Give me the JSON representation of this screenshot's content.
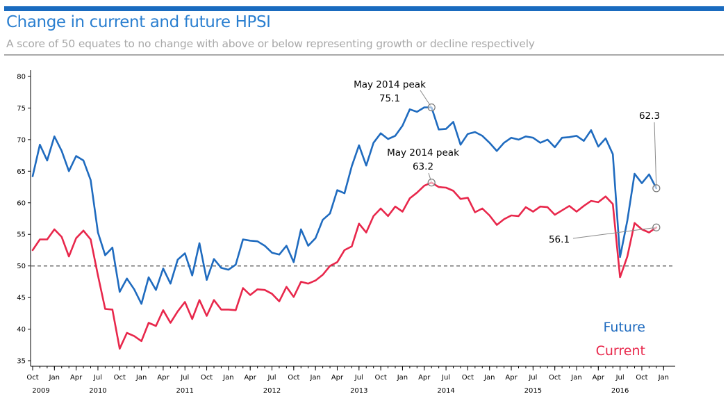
{
  "header": {
    "title": "Change in current and future HPSI",
    "subtitle": "A score of 50 equates to no change with above or below representing growth or decline respectively"
  },
  "colors": {
    "future": "#1f6bbf",
    "current": "#e8274b",
    "accent": "#1a6bbf"
  },
  "chart_data": {
    "type": "line",
    "title": "Change in current and future HPSI",
    "subtitle": "A score of 50 equates to no change with above or below representing growth or decline respectively",
    "ylim": [
      35,
      80
    ],
    "yticks": [
      35,
      40,
      45,
      50,
      55,
      60,
      65,
      70,
      75,
      80
    ],
    "x_start": "2009-10",
    "x_end": "2016-12",
    "month_labels": [
      "Oct",
      "Jan",
      "Apr",
      "Jul",
      "Oct",
      "Jan",
      "Apr",
      "Jul",
      "Oct",
      "Jan",
      "Apr",
      "Jul",
      "Oct",
      "Jan",
      "Apr",
      "Jul",
      "Oct",
      "Jan",
      "Apr",
      "Jul",
      "Oct",
      "Jan",
      "Apr",
      "Jul",
      "Oct",
      "Jan",
      "Apr",
      "Jul",
      "Oct",
      "Jan"
    ],
    "year_labels": [
      "2009",
      "2010",
      "2011",
      "2012",
      "2013",
      "2014",
      "2015",
      "2016"
    ],
    "reference_line": {
      "y": 50,
      "style": "dashed"
    },
    "grid": false,
    "legend_placement": "bottom-right",
    "series": [
      {
        "name": "Future",
        "values": [
          64.2,
          69.2,
          66.7,
          70.5,
          68.2,
          65.0,
          67.4,
          66.7,
          63.6,
          55.3,
          51.7,
          52.9,
          45.9,
          48.0,
          46.3,
          44.0,
          48.2,
          46.2,
          49.6,
          47.2,
          51.0,
          52.0,
          48.5,
          53.6,
          47.8,
          51.1,
          49.7,
          49.4,
          50.2,
          54.2,
          54.0,
          53.9,
          53.2,
          52.1,
          51.8,
          53.2,
          50.6,
          55.8,
          53.2,
          54.4,
          57.3,
          58.3,
          62.0,
          61.5,
          65.8,
          69.1,
          65.9,
          69.5,
          71.0,
          70.1,
          70.6,
          72.2,
          74.8,
          74.4,
          75.1,
          75.1,
          71.6,
          71.7,
          72.8,
          69.2,
          70.9,
          71.2,
          70.6,
          69.5,
          68.2,
          69.5,
          70.3,
          70.0,
          70.5,
          70.3,
          69.5,
          70.0,
          68.8,
          70.3,
          70.4,
          70.6,
          69.8,
          71.5,
          68.9,
          70.2,
          67.7,
          51.4,
          57.2,
          64.6,
          63.1,
          64.5,
          62.3
        ]
      },
      {
        "name": "Current",
        "values": [
          52.5,
          54.2,
          54.2,
          55.8,
          54.6,
          51.5,
          54.4,
          55.6,
          54.2,
          48.5,
          43.2,
          43.1,
          36.9,
          39.4,
          38.9,
          38.1,
          41.0,
          40.5,
          43.0,
          41.0,
          42.8,
          44.3,
          41.6,
          44.6,
          42.1,
          44.6,
          43.1,
          43.1,
          43.0,
          46.5,
          45.4,
          46.3,
          46.2,
          45.6,
          44.4,
          46.7,
          45.1,
          47.5,
          47.2,
          47.7,
          48.6,
          50.0,
          50.6,
          52.5,
          53.1,
          56.7,
          55.3,
          57.9,
          59.1,
          57.9,
          59.4,
          58.6,
          60.7,
          61.6,
          62.7,
          63.2,
          62.5,
          62.4,
          61.9,
          60.6,
          60.8,
          58.5,
          59.1,
          58.0,
          56.5,
          57.4,
          58.0,
          57.9,
          59.3,
          58.6,
          59.4,
          59.3,
          58.1,
          58.8,
          59.5,
          58.6,
          59.5,
          60.3,
          60.1,
          61.0,
          59.8,
          48.2,
          51.5,
          56.8,
          55.8,
          55.3,
          56.1
        ]
      }
    ],
    "annotations": [
      {
        "line1": "May 2014 peak",
        "line2": "75.1",
        "series": "Future",
        "x": "2014-05",
        "y": 75.1
      },
      {
        "line1": "May 2014 peak",
        "line2": "63.2",
        "series": "Current",
        "x": "2014-05",
        "y": 63.2
      },
      {
        "line1": "62.3",
        "series": "Future",
        "x": "2016-12",
        "y": 62.3
      },
      {
        "line1": "56.1",
        "series": "Current",
        "x": "2016-12",
        "y": 56.1
      }
    ]
  }
}
